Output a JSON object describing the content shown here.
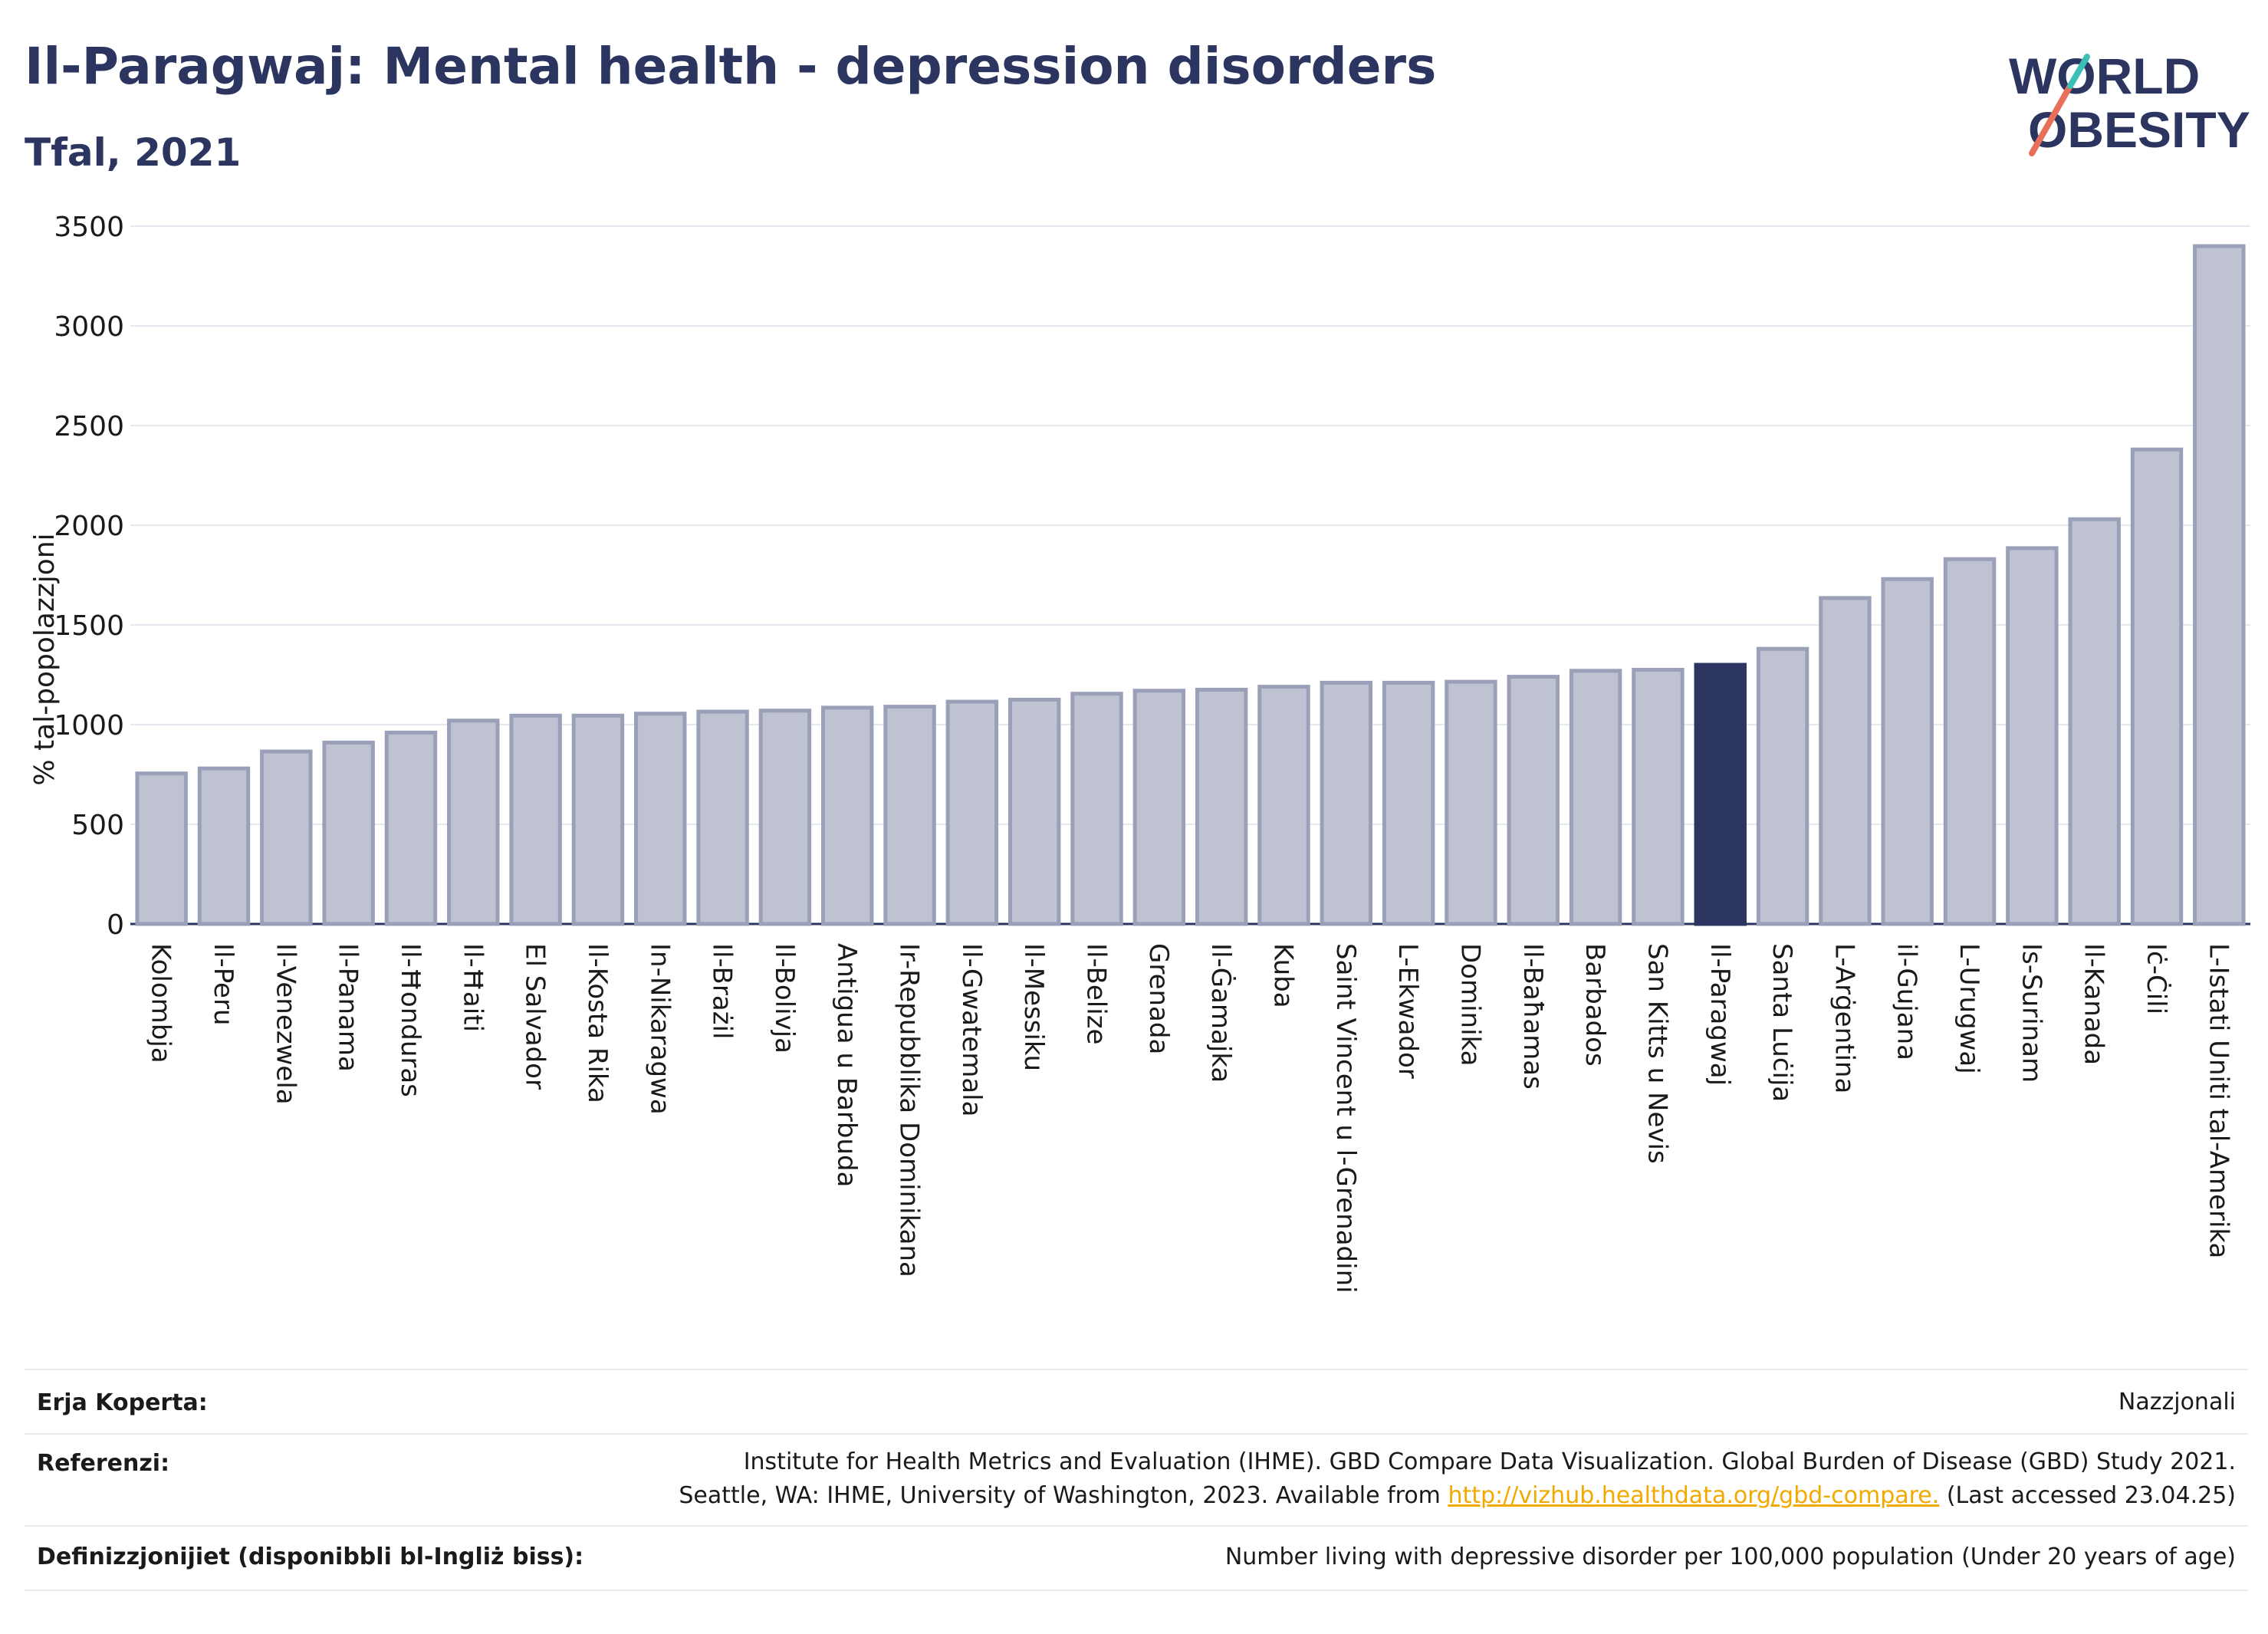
{
  "header": {
    "title": "Il-Paragwaj: Mental health - depression disorders",
    "subtitle": "Tfal, 2021"
  },
  "logo": {
    "line1": "WORLD",
    "line2": "OBESITY"
  },
  "colors": {
    "bar": "#bfc3d1",
    "bar_edge": "#9aa0b8",
    "highlight": "#2c3560",
    "grid": "#e6e8ef",
    "axis": "#2c3560"
  },
  "chart_data": {
    "type": "bar",
    "ylabel": "% tal-popolazzjoni",
    "ylim": [
      0,
      3500
    ],
    "yticks": [
      0,
      500,
      1000,
      1500,
      2000,
      2500,
      3000,
      3500
    ],
    "grid": true,
    "highlight": "Il-Paragwaj",
    "categories": [
      "Kolombja",
      "Il-Peru",
      "Il-Venezwela",
      "Il-Panama",
      "Il-Ħonduras",
      "Il-Ħaiti",
      "El Salvador",
      "Il-Kosta Rika",
      "In-Nikaragwa",
      "Il-Brażil",
      "Il-Bolivja",
      "Antigua u Barbuda",
      "Ir-Repubblika Dominikana",
      "Il-Gwatemala",
      "Il-Messiku",
      "Il-Belize",
      "Grenada",
      "Il-Ġamajka",
      "Kuba",
      "Saint Vincent u l-Grenadini",
      "L-Ekwador",
      "Dominika",
      "Il-Baħamas",
      "Barbados",
      "San Kitts u Nevis",
      "Il-Paragwaj",
      "Santa Luċija",
      "L-Arġentina",
      "il-Gujana",
      "L-Urugwaj",
      "Is-Surinam",
      "Il-Kanada",
      "Iċ-Ċili",
      "L-Istati Uniti tal-Amerika"
    ],
    "values": [
      755,
      780,
      865,
      910,
      960,
      1020,
      1045,
      1045,
      1055,
      1065,
      1070,
      1085,
      1090,
      1115,
      1125,
      1155,
      1170,
      1175,
      1190,
      1210,
      1210,
      1215,
      1240,
      1270,
      1275,
      1300,
      1380,
      1635,
      1730,
      1830,
      1885,
      2030,
      2380,
      3400
    ]
  },
  "footer": {
    "coverage_label": "Erja Koperta:",
    "coverage_value": "Nazzjonali",
    "references_label": "Referenzi:",
    "references_line1": "Institute for Health Metrics and Evaluation (IHME). GBD Compare Data Visualization. Global Burden of Disease (GBD) Study 2021.",
    "references_line2_pre": "Seattle, WA: IHME, University of Washington, 2023. Available from ",
    "references_link": "http://vizhub.healthdata.org/gbd-compare.",
    "references_line2_post": " (Last accessed 23.04.25)",
    "definitions_label": "Definizzjonijiet (disponibbli bl-Ingliż biss):",
    "definitions_value": "Number living with depressive disorder per 100,000 population (Under 20 years of age)"
  }
}
